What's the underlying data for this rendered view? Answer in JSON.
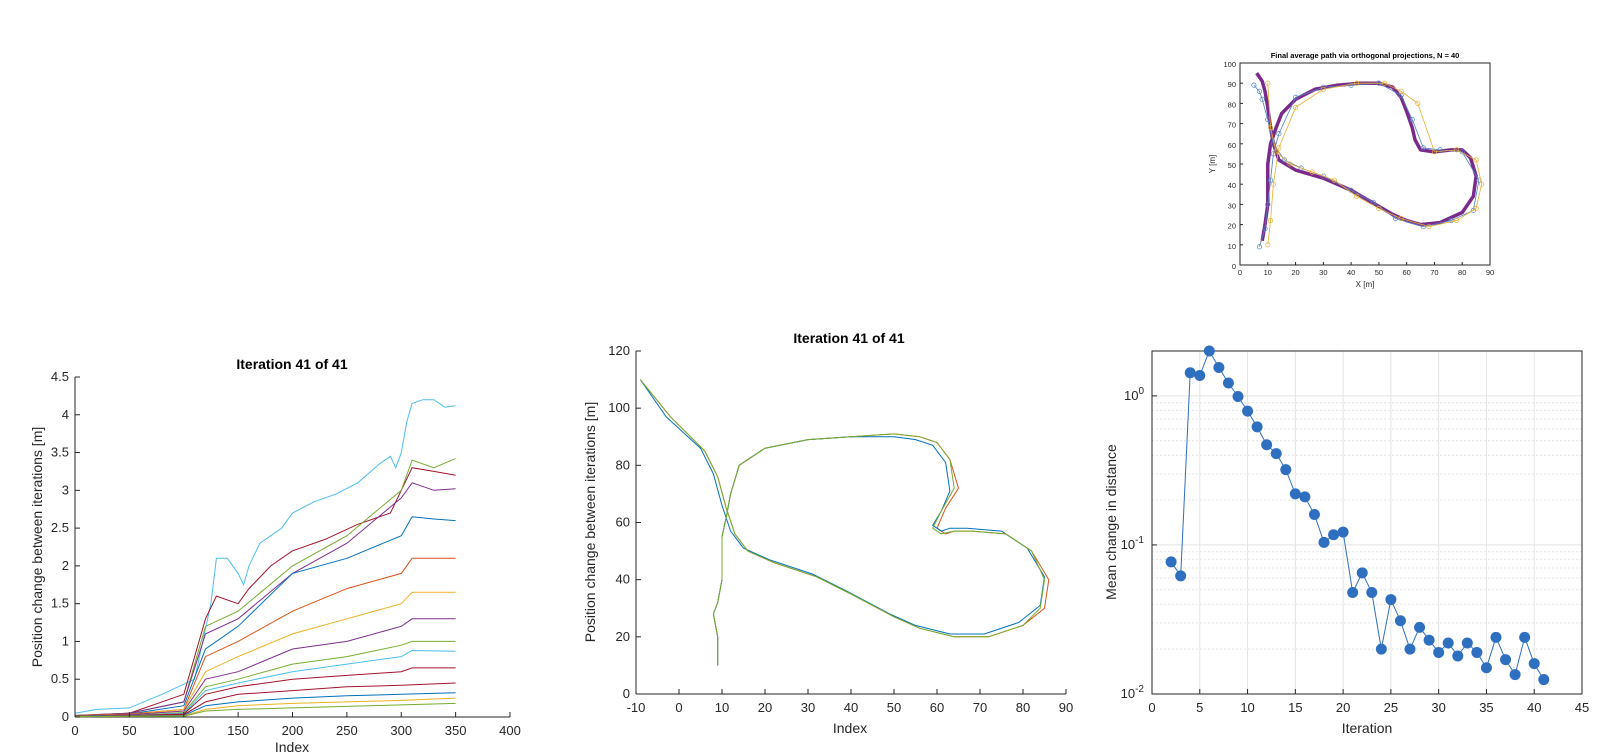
{
  "charts": {
    "top_path": {
      "title": "Final average path via orthogonal projections, N = 40",
      "xlabel": "X [m]",
      "ylabel": "Y [m]",
      "xticks": [
        "0",
        "10",
        "20",
        "30",
        "40",
        "50",
        "60",
        "70",
        "80",
        "90"
      ],
      "yticks": [
        "0",
        "10",
        "20",
        "30",
        "40",
        "50",
        "60",
        "70",
        "80",
        "90",
        "100"
      ]
    },
    "left": {
      "title": "Iteration 41 of 41",
      "xlabel": "Index",
      "ylabel": "Position change between iterations [m]",
      "xticks": [
        "0",
        "50",
        "100",
        "150",
        "200",
        "250",
        "300",
        "350",
        "400"
      ],
      "yticks": [
        "0",
        "0.5",
        "1",
        "1.5",
        "2",
        "2.5",
        "3",
        "3.5",
        "4",
        "4.5"
      ]
    },
    "middle": {
      "title": "Iteration 41 of 41",
      "xlabel": "Index",
      "ylabel": "Position change between iterations [m]",
      "xticks": [
        "-10",
        "0",
        "10",
        "20",
        "30",
        "40",
        "50",
        "60",
        "70",
        "80",
        "90"
      ],
      "yticks": [
        "0",
        "20",
        "40",
        "60",
        "80",
        "100",
        "120"
      ]
    },
    "right": {
      "xlabel": "Iteration",
      "ylabel": "Mean change in distance",
      "xticks": [
        "0",
        "5",
        "10",
        "15",
        "20",
        "25",
        "30",
        "35",
        "40",
        "45"
      ],
      "yticks": [
        "10^-2",
        "10^-1",
        "10^0"
      ]
    }
  },
  "chart_data": [
    {
      "type": "scatter",
      "title": "Final average path via orthogonal projections, N = 40",
      "xlabel": "X [m]",
      "ylabel": "Y [m]",
      "xlim": [
        0,
        90
      ],
      "ylim": [
        0,
        100
      ],
      "grid": false,
      "series": [
        {
          "color": "#7b2a8c",
          "x": [
            8,
            9,
            10,
            10,
            10,
            11,
            13,
            15,
            20,
            27,
            35,
            43,
            50,
            55,
            58,
            60,
            62,
            63,
            65,
            70,
            76,
            80,
            83,
            85,
            84,
            80,
            72,
            65,
            60,
            55,
            50,
            40,
            30,
            20,
            14,
            12,
            11,
            10,
            9,
            8,
            6
          ],
          "y": [
            12,
            20,
            30,
            40,
            50,
            60,
            68,
            75,
            82,
            87,
            89,
            90,
            90,
            88,
            83,
            76,
            68,
            62,
            57,
            56,
            57,
            57,
            53,
            44,
            34,
            26,
            21,
            20,
            22,
            25,
            29,
            37,
            43,
            47,
            52,
            60,
            68,
            78,
            86,
            91,
            95
          ]
        },
        {
          "color": "#4f80c0",
          "x": [
            7,
            9,
            10,
            11,
            12,
            14,
            20,
            30,
            40,
            50,
            58,
            62,
            66,
            72,
            80,
            86,
            84,
            76,
            66,
            56,
            48,
            40,
            30,
            22,
            16,
            12,
            10,
            8,
            7,
            5
          ],
          "y": [
            9,
            18,
            30,
            42,
            55,
            65,
            83,
            88,
            89,
            90,
            84,
            72,
            58,
            57,
            56,
            42,
            27,
            22,
            19,
            23,
            31,
            37,
            44,
            48,
            52,
            60,
            72,
            82,
            86,
            89
          ]
        },
        {
          "color": "#e8b030",
          "x": [
            10,
            11,
            12,
            14,
            20,
            30,
            42,
            52,
            58,
            64,
            70,
            78,
            85,
            87,
            85,
            78,
            68,
            58,
            50,
            42,
            34,
            26,
            18,
            13,
            11,
            10
          ],
          "y": [
            10,
            22,
            40,
            58,
            78,
            87,
            90,
            90,
            86,
            80,
            56,
            57,
            52,
            40,
            28,
            22,
            19,
            23,
            28,
            34,
            42,
            46,
            50,
            56,
            68,
            90
          ]
        }
      ]
    },
    {
      "type": "line",
      "title": "Iteration 41 of 41",
      "xlabel": "Index",
      "ylabel": "Position change between iterations [m]",
      "xlim": [
        0,
        400
      ],
      "ylim": [
        0,
        4.5
      ],
      "grid": false,
      "series": [
        {
          "color": "#4dbeee",
          "x": [
            0,
            20,
            50,
            80,
            110,
            125,
            130,
            140,
            150,
            155,
            160,
            170,
            180,
            190,
            200,
            220,
            240,
            260,
            280,
            290,
            295,
            300,
            305,
            310,
            320,
            330,
            340,
            350
          ],
          "y": [
            0.05,
            0.1,
            0.12,
            0.3,
            0.5,
            1.5,
            2.1,
            2.1,
            1.9,
            1.75,
            2.0,
            2.3,
            2.4,
            2.5,
            2.7,
            2.85,
            2.95,
            3.1,
            3.35,
            3.45,
            3.3,
            3.5,
            3.9,
            4.15,
            4.2,
            4.2,
            4.1,
            4.12
          ]
        },
        {
          "color": "#a2142f",
          "x": [
            0,
            50,
            100,
            120,
            130,
            150,
            160,
            180,
            200,
            230,
            260,
            290,
            300,
            310,
            330,
            350
          ],
          "y": [
            0.02,
            0.05,
            0.3,
            1.3,
            1.6,
            1.5,
            1.7,
            2.0,
            2.2,
            2.35,
            2.55,
            2.7,
            3.0,
            3.3,
            3.25,
            3.2
          ]
        },
        {
          "color": "#77ac30",
          "x": [
            0,
            50,
            100,
            120,
            150,
            200,
            250,
            300,
            310,
            330,
            350
          ],
          "y": [
            0.02,
            0.05,
            0.2,
            1.2,
            1.4,
            2.0,
            2.4,
            3.0,
            3.4,
            3.3,
            3.42
          ]
        },
        {
          "color": "#7e2f8e",
          "x": [
            0,
            50,
            100,
            120,
            150,
            200,
            250,
            300,
            310,
            330,
            350
          ],
          "y": [
            0.02,
            0.05,
            0.2,
            1.1,
            1.3,
            1.9,
            2.3,
            2.9,
            3.1,
            3.0,
            3.02
          ]
        },
        {
          "color": "#0072bd",
          "x": [
            0,
            50,
            100,
            120,
            150,
            200,
            250,
            300,
            310,
            330,
            350
          ],
          "y": [
            0.02,
            0.04,
            0.15,
            0.9,
            1.2,
            1.9,
            2.1,
            2.4,
            2.65,
            2.62,
            2.6
          ]
        },
        {
          "color": "#d95319",
          "x": [
            0,
            50,
            100,
            120,
            150,
            200,
            250,
            300,
            310,
            330,
            350
          ],
          "y": [
            0.02,
            0.04,
            0.1,
            0.8,
            1.0,
            1.4,
            1.7,
            1.9,
            2.1,
            2.1,
            2.1
          ]
        },
        {
          "color": "#edb120",
          "x": [
            0,
            50,
            100,
            120,
            150,
            200,
            250,
            300,
            310,
            350
          ],
          "y": [
            0.01,
            0.03,
            0.1,
            0.6,
            0.8,
            1.1,
            1.3,
            1.5,
            1.65,
            1.65
          ]
        },
        {
          "color": "#7e2f8e",
          "x": [
            0,
            50,
            100,
            120,
            150,
            200,
            250,
            300,
            310,
            350
          ],
          "y": [
            0.01,
            0.03,
            0.08,
            0.5,
            0.6,
            0.9,
            1.0,
            1.2,
            1.3,
            1.3
          ]
        },
        {
          "color": "#77ac30",
          "x": [
            0,
            50,
            100,
            120,
            150,
            200,
            250,
            300,
            310,
            350
          ],
          "y": [
            0.01,
            0.02,
            0.06,
            0.4,
            0.5,
            0.7,
            0.8,
            0.95,
            1.0,
            1.0
          ]
        },
        {
          "color": "#4dbeee",
          "x": [
            0,
            50,
            100,
            120,
            150,
            200,
            250,
            300,
            310,
            350
          ],
          "y": [
            0.01,
            0.02,
            0.05,
            0.35,
            0.45,
            0.6,
            0.7,
            0.8,
            0.88,
            0.87
          ]
        },
        {
          "color": "#a2142f",
          "x": [
            0,
            50,
            100,
            120,
            150,
            200,
            250,
            300,
            310,
            350
          ],
          "y": [
            0.01,
            0.02,
            0.04,
            0.3,
            0.4,
            0.5,
            0.55,
            0.6,
            0.65,
            0.65
          ]
        },
        {
          "color": "#a2142f",
          "x": [
            0,
            50,
            100,
            120,
            150,
            200,
            250,
            300,
            350
          ],
          "y": [
            0.01,
            0.02,
            0.03,
            0.2,
            0.3,
            0.35,
            0.4,
            0.42,
            0.45
          ]
        },
        {
          "color": "#0072bd",
          "x": [
            0,
            50,
            100,
            120,
            150,
            200,
            250,
            300,
            350
          ],
          "y": [
            0.01,
            0.015,
            0.02,
            0.15,
            0.2,
            0.25,
            0.28,
            0.3,
            0.32
          ]
        },
        {
          "color": "#edb120",
          "x": [
            0,
            50,
            100,
            120,
            150,
            200,
            250,
            300,
            350
          ],
          "y": [
            0.005,
            0.01,
            0.015,
            0.1,
            0.15,
            0.18,
            0.2,
            0.22,
            0.25
          ]
        },
        {
          "color": "#77ac30",
          "x": [
            0,
            50,
            100,
            120,
            150,
            200,
            250,
            300,
            350
          ],
          "y": [
            0.005,
            0.01,
            0.01,
            0.08,
            0.1,
            0.12,
            0.14,
            0.16,
            0.18
          ]
        }
      ]
    },
    {
      "type": "line",
      "title": "Iteration 41 of 41",
      "xlabel": "Index",
      "ylabel": "Position change between iterations [m]",
      "xlim": [
        -10,
        90
      ],
      "ylim": [
        0,
        120
      ],
      "grid": false,
      "series": [
        {
          "color": "#d95319",
          "x": [
            9,
            9,
            8,
            9,
            10,
            10,
            11,
            12,
            14,
            20,
            30,
            40,
            50,
            56,
            60,
            63,
            65,
            62,
            60,
            62,
            64,
            68,
            76,
            82,
            86,
            85,
            80,
            72,
            64,
            56,
            50,
            40,
            32,
            22,
            16,
            13,
            11,
            9,
            6,
            -2,
            -9
          ],
          "y": [
            10,
            20,
            28,
            32,
            40,
            55,
            62,
            70,
            80,
            86,
            89,
            90,
            91,
            90,
            88,
            82,
            72,
            65,
            58,
            56,
            57,
            57,
            56,
            50,
            40,
            30,
            24,
            20,
            20,
            23,
            27,
            35,
            41,
            46,
            50,
            56,
            65,
            76,
            85,
            97,
            110
          ]
        },
        {
          "color": "#0072bd",
          "x": [
            9,
            9,
            8,
            9,
            10,
            10,
            11,
            12,
            14,
            20,
            30,
            40,
            50,
            55,
            59,
            62,
            63,
            61,
            59,
            61,
            63,
            67,
            75,
            81,
            85,
            84,
            79,
            71,
            63,
            55,
            49,
            39,
            31,
            21,
            15,
            12,
            10,
            8,
            5,
            -3,
            -9
          ],
          "y": [
            10,
            20,
            28,
            32,
            40,
            55,
            62,
            70,
            80,
            86,
            89,
            90,
            90,
            89,
            87,
            81,
            71,
            64,
            59,
            57,
            58,
            58,
            57,
            51,
            41,
            31,
            25,
            21,
            21,
            24,
            28,
            36,
            42,
            47,
            51,
            57,
            66,
            77,
            86,
            97,
            110
          ]
        },
        {
          "color": "#77ac30",
          "x": [
            9,
            9,
            8,
            9,
            10,
            10,
            11,
            12,
            14,
            20,
            30,
            40,
            50,
            56,
            60,
            63,
            64,
            61,
            59,
            61,
            64,
            68,
            76,
            82,
            85,
            84,
            80,
            72,
            64,
            56,
            50,
            40,
            32,
            22,
            16,
            13,
            11,
            9,
            6,
            -2,
            -9
          ],
          "y": [
            10,
            20,
            28,
            32,
            40,
            55,
            62,
            70,
            80,
            86,
            89,
            90,
            91,
            90,
            88,
            82,
            72,
            64,
            58,
            56,
            57,
            57,
            56,
            50,
            40,
            30,
            24,
            20,
            20,
            23,
            27,
            35,
            41,
            46,
            50,
            56,
            65,
            76,
            85,
            97,
            110
          ]
        }
      ]
    },
    {
      "type": "scatter",
      "xlabel": "Iteration",
      "ylabel": "Mean change in distance",
      "xlim": [
        0,
        45
      ],
      "ylim": [
        0.01,
        2
      ],
      "yscale": "log",
      "grid": true,
      "x": [
        2,
        3,
        4,
        5,
        6,
        7,
        8,
        9,
        10,
        11,
        12,
        13,
        14,
        15,
        16,
        17,
        18,
        19,
        20,
        21,
        22,
        23,
        24,
        25,
        26,
        27,
        28,
        29,
        30,
        31,
        32,
        33,
        34,
        35,
        36,
        37,
        38,
        39,
        40,
        41
      ],
      "y": [
        0.077,
        0.062,
        1.43,
        1.37,
        2.0,
        1.55,
        1.22,
        0.99,
        0.79,
        0.62,
        0.47,
        0.41,
        0.32,
        0.22,
        0.21,
        0.16,
        0.104,
        0.117,
        0.122,
        0.048,
        0.065,
        0.048,
        0.02,
        0.043,
        0.031,
        0.02,
        0.028,
        0.023,
        0.019,
        0.022,
        0.018,
        0.022,
        0.019,
        0.015,
        0.024,
        0.017,
        0.0135,
        0.024,
        0.016,
        0.0125
      ]
    }
  ],
  "colors": {
    "axis": "#262626",
    "marker": "#2f6fbf",
    "grid": "#e4e4e4"
  }
}
